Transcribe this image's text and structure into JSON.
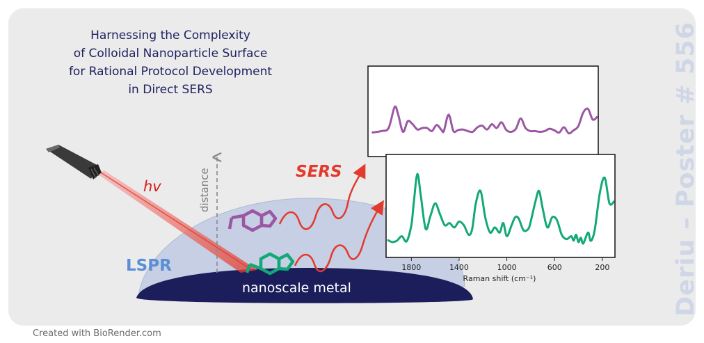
{
  "title_lines": [
    "Harnessing the Complexity",
    "of Colloidal Nanoparticle Surface",
    "for Rational Protocol Development",
    "in Direct SERS"
  ],
  "labels": {
    "hv": "hv",
    "distance": "distance",
    "sers": "SERS",
    "lspr": "LSPR",
    "metal": "nanoscale metal",
    "axis_label": "Raman shift (cm⁻¹)"
  },
  "side_text": "Deriu – Poster # 556",
  "footer": "Created with BioRender.com",
  "colors": {
    "purple": "#9b57a3",
    "green": "#12a877",
    "red": "#e23a2c",
    "metal": "#1c1e5c",
    "lspr": "#5b8ed6",
    "dome": "#c6cfe3"
  },
  "chart_data": {
    "type": "line",
    "xlabel": "Raman shift (cm⁻¹)",
    "x_ticks": [
      1800,
      1400,
      1000,
      600,
      200
    ],
    "xlim": [
      2000,
      100
    ],
    "series": [
      {
        "color": "#9b57a3",
        "x": [
          1980,
          1900,
          1840,
          1790,
          1760,
          1720,
          1680,
          1640,
          1600,
          1560,
          1520,
          1480,
          1440,
          1400,
          1380,
          1340,
          1300,
          1260,
          1220,
          1180,
          1140,
          1100,
          1060,
          1020,
          980,
          940,
          900,
          860,
          820,
          780,
          740,
          700,
          660,
          620,
          580,
          540,
          500,
          460,
          420,
          380,
          340,
          300,
          260,
          220,
          180,
          140,
          100
        ],
        "y": [
          0.08,
          0.12,
          0.2,
          0.75,
          0.55,
          0.1,
          0.38,
          0.3,
          0.16,
          0.2,
          0.2,
          0.12,
          0.28,
          0.15,
          0.12,
          0.55,
          0.12,
          0.15,
          0.16,
          0.12,
          0.1,
          0.22,
          0.26,
          0.16,
          0.3,
          0.2,
          0.35,
          0.15,
          0.1,
          0.18,
          0.45,
          0.2,
          0.12,
          0.12,
          0.1,
          0.12,
          0.18,
          0.14,
          0.08,
          0.22,
          0.06,
          0.14,
          0.25,
          0.6,
          0.7,
          0.42,
          0.5
        ]
      },
      {
        "color": "#12a877",
        "x": [
          2000,
          1960,
          1920,
          1880,
          1840,
          1800,
          1780,
          1750,
          1720,
          1680,
          1640,
          1600,
          1560,
          1520,
          1480,
          1440,
          1400,
          1360,
          1320,
          1290,
          1260,
          1220,
          1180,
          1140,
          1100,
          1060,
          1030,
          1000,
          960,
          930,
          900,
          860,
          820,
          800,
          760,
          730,
          700,
          660,
          620,
          580,
          540,
          500,
          460,
          440,
          420,
          400,
          380,
          360,
          320,
          300,
          280,
          260,
          220,
          180,
          140,
          100
        ],
        "y": [
          0.05,
          0.02,
          0.04,
          0.1,
          0.03,
          0.25,
          0.55,
          0.95,
          0.65,
          0.2,
          0.38,
          0.55,
          0.4,
          0.25,
          0.28,
          0.22,
          0.3,
          0.25,
          0.12,
          0.2,
          0.55,
          0.72,
          0.35,
          0.15,
          0.22,
          0.15,
          0.28,
          0.1,
          0.25,
          0.36,
          0.34,
          0.18,
          0.2,
          0.3,
          0.58,
          0.72,
          0.48,
          0.22,
          0.36,
          0.32,
          0.12,
          0.06,
          0.1,
          0.04,
          0.12,
          0.02,
          0.08,
          0.0,
          0.15,
          0.04,
          0.08,
          0.22,
          0.7,
          0.9,
          0.55,
          0.58
        ]
      }
    ]
  }
}
